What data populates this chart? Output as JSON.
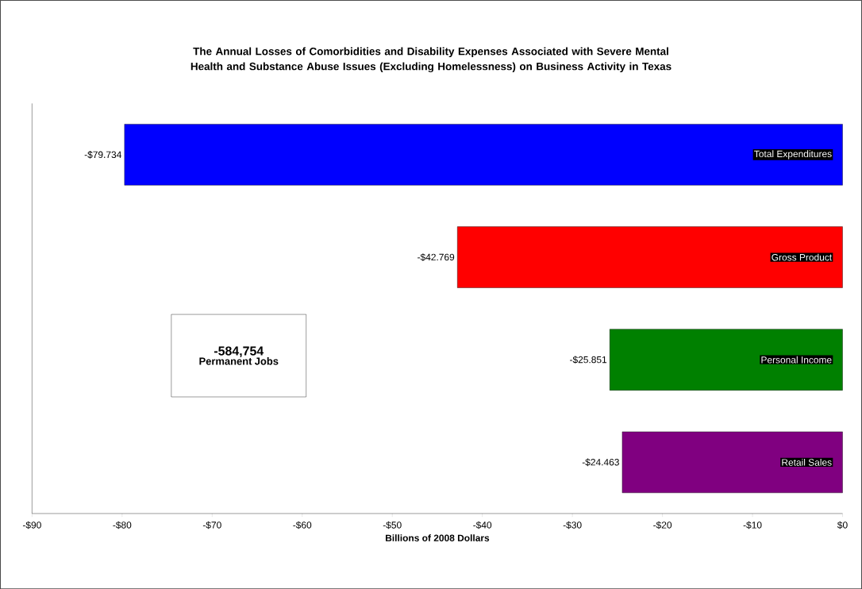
{
  "chart_data": {
    "type": "bar",
    "orientation": "horizontal",
    "title": "The Annual Losses of Comorbidities and Disability Expenses Associated with Severe Mental Health and Substance Abuse Issues (Excluding Homelessness) on Business Activity in Texas",
    "xlabel": "Billions of 2008 Dollars",
    "categories": [
      "Total Expenditures",
      "Gross Product",
      "Personal Income",
      "Retail Sales"
    ],
    "values": [
      -79.734,
      -42.769,
      -25.851,
      -24.463
    ],
    "colors": [
      "#0000ff",
      "#ff0000",
      "#008000",
      "#800080"
    ],
    "value_labels": [
      "-$79.734",
      "-$42.769",
      "-$25.851",
      "-$24.463"
    ],
    "xlim": [
      -90,
      0
    ],
    "xticks": [
      {
        "value": -90,
        "label": "-$90"
      },
      {
        "value": -80,
        "label": "-$80"
      },
      {
        "value": -70,
        "label": "-$70"
      },
      {
        "value": -60,
        "label": "-$60"
      },
      {
        "value": -50,
        "label": "-$50"
      },
      {
        "value": -40,
        "label": "-$40"
      },
      {
        "value": -30,
        "label": "-$30"
      },
      {
        "value": -20,
        "label": "-$20"
      },
      {
        "value": -10,
        "label": "-$10"
      },
      {
        "value": 0,
        "label": "$0"
      }
    ],
    "annotations": [
      "-584,754",
      "Permanent Jobs"
    ],
    "grid": false
  }
}
